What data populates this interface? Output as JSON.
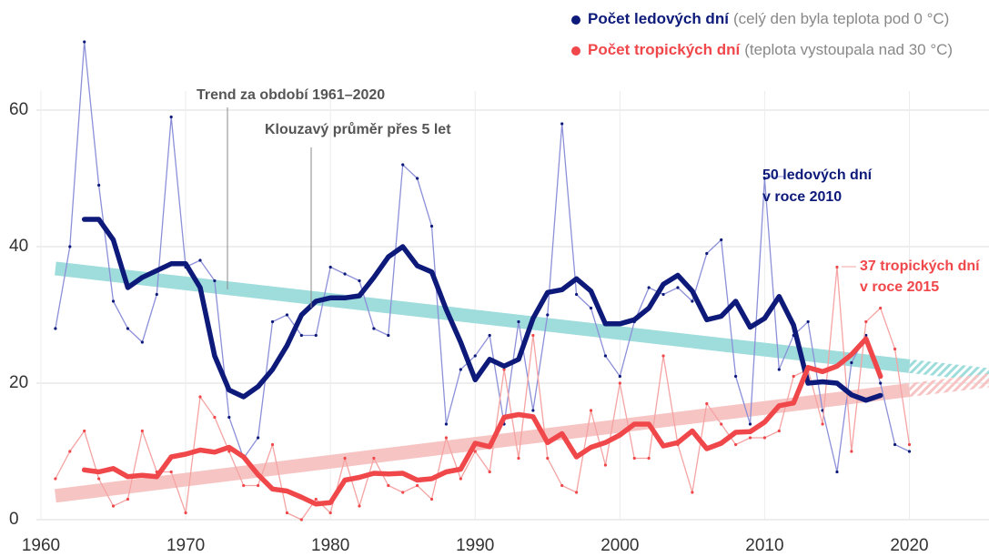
{
  "chart_data": {
    "type": "line",
    "xlim": [
      1960,
      2025.5
    ],
    "xticks": [
      1960,
      1970,
      1980,
      1990,
      2000,
      2010,
      2020
    ],
    "ylim": [
      0,
      72
    ],
    "yticks": [
      0,
      20,
      40,
      60
    ],
    "grid": true,
    "legend": "top-right",
    "series": [
      {
        "name": "Počet ledových dní",
        "description": "(celý den byla teplota pod 0 °C)",
        "color": "#0d1a7a",
        "annual_color": "#8c90d8",
        "trend_color": "#9fdcdc",
        "x": [
          1961,
          1962,
          1963,
          1964,
          1965,
          1966,
          1967,
          1968,
          1969,
          1970,
          1971,
          1972,
          1973,
          1974,
          1975,
          1976,
          1977,
          1978,
          1979,
          1980,
          1981,
          1982,
          1983,
          1984,
          1985,
          1986,
          1987,
          1988,
          1989,
          1990,
          1991,
          1992,
          1993,
          1994,
          1995,
          1996,
          1997,
          1998,
          1999,
          2000,
          2001,
          2002,
          2003,
          2004,
          2005,
          2006,
          2007,
          2008,
          2009,
          2010,
          2011,
          2012,
          2013,
          2014,
          2015,
          2016,
          2017,
          2018,
          2019,
          2020
        ],
        "values": [
          28,
          40,
          70,
          49,
          32,
          28,
          26,
          33,
          59,
          37,
          38,
          35,
          15,
          9,
          12,
          29,
          30,
          27,
          27,
          37,
          36,
          35,
          28,
          27,
          52,
          50,
          43,
          14,
          22,
          24,
          27,
          14,
          29,
          16,
          30,
          58,
          33,
          31,
          24,
          21,
          29,
          34,
          33,
          34,
          32,
          39,
          41,
          21,
          14,
          50,
          22,
          27,
          29,
          16,
          7,
          23,
          27,
          20,
          11,
          10
        ],
        "moving_average": {
          "x": [
            1963,
            1964,
            1965,
            1966,
            1967,
            1968,
            1969,
            1970,
            1971,
            1972,
            1973,
            1974,
            1975,
            1976,
            1977,
            1978,
            1979,
            1980,
            1981,
            1982,
            1983,
            1984,
            1985,
            1986,
            1987,
            1988,
            1989,
            1990,
            1991,
            1992,
            1993,
            1994,
            1995,
            1996,
            1997,
            1998,
            1999,
            2000,
            2001,
            2002,
            2003,
            2004,
            2005,
            2006,
            2007,
            2008,
            2009,
            2010,
            2011,
            2012,
            2013,
            2014,
            2015,
            2016,
            2017,
            2018
          ],
          "values": [
            44,
            44,
            41,
            34,
            35.5,
            36.5,
            37.5,
            37.5,
            34,
            24,
            19,
            18,
            19.5,
            22,
            25.5,
            30,
            32,
            32.5,
            32.5,
            32.8,
            35.5,
            38.5,
            40,
            37.2,
            36.3,
            30.8,
            26,
            20.5,
            23.5,
            22.5,
            23.5,
            29.5,
            33.3,
            33.7,
            35.3,
            33.5,
            28.7,
            28.7,
            29.3,
            31,
            34.5,
            35.8,
            33.5,
            29.3,
            29.8,
            32,
            28.2,
            29.5,
            32.7,
            28.5,
            20,
            20.2,
            20,
            18.3,
            17.5,
            18.2
          ]
        },
        "trend": {
          "x": [
            1961,
            2020,
            2025.5
          ],
          "values": [
            36.8,
            22.5,
            21.2
          ]
        }
      },
      {
        "name": "Počet tropických dní",
        "description": "(teplota vystoupala nad 30 °C)",
        "color": "#f0474a",
        "annual_color": "#f5a3a3",
        "trend_color": "#f7c4c4",
        "x": [
          1961,
          1962,
          1963,
          1964,
          1965,
          1966,
          1967,
          1968,
          1969,
          1970,
          1971,
          1972,
          1973,
          1974,
          1975,
          1976,
          1977,
          1978,
          1979,
          1980,
          1981,
          1982,
          1983,
          1984,
          1985,
          1986,
          1987,
          1988,
          1989,
          1990,
          1991,
          1992,
          1993,
          1994,
          1995,
          1996,
          1997,
          1998,
          1999,
          2000,
          2001,
          2002,
          2003,
          2004,
          2005,
          2006,
          2007,
          2008,
          2009,
          2010,
          2011,
          2012,
          2013,
          2014,
          2015,
          2016,
          2017,
          2018,
          2019,
          2020
        ],
        "values": [
          6,
          10,
          13,
          6,
          2,
          3,
          13,
          7,
          7,
          1,
          18,
          15,
          10,
          5,
          5,
          11,
          1,
          0,
          3,
          1,
          9,
          2,
          9,
          5,
          4,
          5,
          3,
          12,
          6,
          10,
          7,
          22,
          9,
          27,
          9,
          5,
          4,
          16,
          8,
          20,
          9,
          9,
          24,
          11,
          4,
          17,
          14,
          11,
          12,
          12,
          13,
          21,
          22,
          14,
          37,
          10,
          29,
          31,
          25,
          11
        ],
        "moving_average": {
          "x": [
            1963,
            1964,
            1965,
            1966,
            1967,
            1968,
            1969,
            1970,
            1971,
            1972,
            1973,
            1974,
            1975,
            1976,
            1977,
            1978,
            1979,
            1980,
            1981,
            1982,
            1983,
            1984,
            1985,
            1986,
            1987,
            1988,
            1989,
            1990,
            1991,
            1992,
            1993,
            1994,
            1995,
            1996,
            1997,
            1998,
            1999,
            2000,
            2001,
            2002,
            2003,
            2004,
            2005,
            2006,
            2007,
            2008,
            2009,
            2010,
            2011,
            2012,
            2013,
            2014,
            2015,
            2016,
            2017,
            2018
          ],
          "values": [
            7.3,
            7,
            7.5,
            6.3,
            6.5,
            6.3,
            9.2,
            9.6,
            10.2,
            9.9,
            10.6,
            9.2,
            6.6,
            4.5,
            4.2,
            3.3,
            2.3,
            2.5,
            5.8,
            6.2,
            6.8,
            6.7,
            6.8,
            5.8,
            6,
            7,
            7.4,
            11.2,
            10.7,
            15,
            15.4,
            15.1,
            11.3,
            12.6,
            9.2,
            10.6,
            11.3,
            12.4,
            14,
            14,
            10.8,
            11.3,
            13,
            10.4,
            11.2,
            12.8,
            12.9,
            14.3,
            16.7,
            17.1,
            22.3,
            21.7,
            22.5,
            24.2,
            26.5,
            21
          ]
        },
        "trend": {
          "x": [
            1961,
            2020,
            2025.5
          ],
          "values": [
            3.5,
            19,
            20.4
          ]
        }
      }
    ],
    "annotations": [
      {
        "text": "Trend za období 1961–2020"
      },
      {
        "text": "Klouzavý průměr přes 5 let"
      },
      {
        "lines": [
          "50 ledových dní",
          "v roce 2010"
        ]
      },
      {
        "lines": [
          "37 tropických dní",
          "v roce 2015"
        ]
      }
    ]
  }
}
